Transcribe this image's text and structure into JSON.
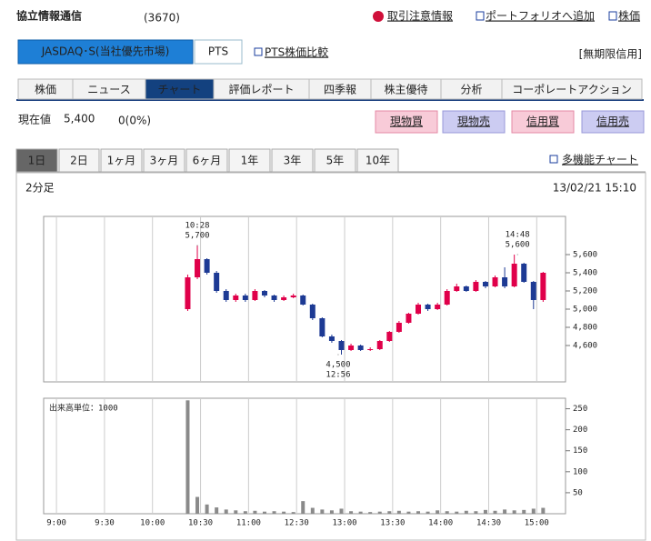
{
  "header": {
    "company": "協立情報通信",
    "code": "(3670)",
    "links": [
      "取引注意情報",
      "ポートフォリオへ追加",
      "株価"
    ]
  },
  "market": {
    "buttons": [
      "JASDAQ･S(当社優先市場)",
      "PTS"
    ],
    "compare_link": "PTS株価比較",
    "credit_note": "[無期限信用]"
  },
  "tabs": {
    "items": [
      "株価",
      "ニュース",
      "チャート",
      "評価レポート",
      "四季報",
      "株主優待",
      "分析",
      "コーポレートアクション"
    ],
    "active": 2
  },
  "quote": {
    "label": "現在値",
    "price": "5,400",
    "change": "0(0%)"
  },
  "trade_buttons": [
    "現物買",
    "現物売",
    "信用買",
    "信用売"
  ],
  "periods": {
    "items": [
      "1日",
      "2日",
      "1ヶ月",
      "3ヶ月",
      "6ヶ月",
      "1年",
      "3年",
      "5年",
      "10年"
    ],
    "active": 0,
    "link": "多機能チャート"
  },
  "chart_info": {
    "interval": "2分足",
    "timestamp": "13/02/21 15:10"
  },
  "chart_data": [
    {
      "type": "candlestick",
      "x": [
        82,
        88,
        94,
        100,
        106,
        112,
        118,
        124,
        130,
        136,
        142,
        148,
        154,
        160,
        166,
        172,
        178,
        184,
        190,
        196,
        202,
        208,
        214,
        220,
        226,
        232,
        238,
        244,
        250,
        256,
        262,
        268,
        274,
        280,
        286,
        292,
        298,
        304
      ],
      "open": [
        5000,
        5350,
        5550,
        5400,
        5200,
        5100,
        5150,
        5100,
        5200,
        5150,
        5100,
        5130,
        5150,
        5050,
        4900,
        4700,
        4650,
        4550,
        4600,
        4550,
        4560,
        4650,
        4750,
        4850,
        4950,
        5050,
        5000,
        5050,
        5200,
        5250,
        5200,
        5300,
        5250,
        5350,
        5250,
        5500,
        5300,
        5100
      ],
      "high": [
        5380,
        5700,
        5560,
        5420,
        5220,
        5170,
        5170,
        5220,
        5210,
        5160,
        5150,
        5170,
        5160,
        5060,
        4910,
        4720,
        4660,
        4620,
        4610,
        4580,
        4660,
        4760,
        4870,
        4960,
        5070,
        5060,
        5070,
        5220,
        5280,
        5260,
        5320,
        5310,
        5370,
        5460,
        5600,
        5510,
        5310,
        5410
      ],
      "low": [
        4980,
        5330,
        5380,
        5180,
        5080,
        5080,
        5080,
        5090,
        5130,
        5080,
        5090,
        5120,
        5040,
        4880,
        4690,
        4630,
        4500,
        4540,
        4540,
        4540,
        4550,
        4640,
        4740,
        4840,
        4940,
        4980,
        4990,
        5040,
        5190,
        5190,
        5190,
        5230,
        5240,
        5230,
        5240,
        5290,
        5000,
        5080
      ],
      "close": [
        5350,
        5550,
        5400,
        5200,
        5100,
        5150,
        5100,
        5200,
        5150,
        5100,
        5130,
        5150,
        5050,
        4900,
        4700,
        4650,
        4550,
        4600,
        4550,
        4560,
        4650,
        4750,
        4850,
        4950,
        5050,
        5000,
        5050,
        5200,
        5250,
        5200,
        5300,
        5250,
        5350,
        5250,
        5500,
        5300,
        5100,
        5400
      ],
      "up_color": "#e0004a",
      "down_color": "#1d3a94",
      "xlim": [
        -8,
        318
      ],
      "ylim": [
        4200,
        6020
      ],
      "yticks": [
        {
          "value": 4600,
          "label": "4,600"
        },
        {
          "value": 4800,
          "label": "4,800"
        },
        {
          "value": 5000,
          "label": "5,000"
        },
        {
          "value": 5200,
          "label": "5,200"
        },
        {
          "value": 5400,
          "label": "5,400"
        },
        {
          "value": 5600,
          "label": "5,600"
        }
      ],
      "grid": true,
      "annotations": [
        {
          "x": 88,
          "y": 5700,
          "lines": [
            "10:28",
            "5,700"
          ],
          "position": "above"
        },
        {
          "x": 176,
          "y": 4500,
          "lines": [
            "4,500",
            "12:56"
          ],
          "position": "below"
        },
        {
          "x": 288,
          "y": 5600,
          "lines": [
            "14:48",
            "5,600"
          ],
          "position": "above"
        }
      ]
    },
    {
      "type": "bar",
      "label": "出来高単位：1000",
      "x": [
        82,
        88,
        94,
        100,
        106,
        112,
        118,
        124,
        130,
        136,
        142,
        148,
        154,
        160,
        166,
        172,
        178,
        184,
        190,
        196,
        202,
        208,
        214,
        220,
        226,
        232,
        238,
        244,
        250,
        256,
        262,
        268,
        274,
        280,
        286,
        292,
        298,
        304
      ],
      "values": [
        270,
        40,
        22,
        15,
        10,
        8,
        6,
        7,
        5,
        6,
        5,
        4,
        30,
        14,
        10,
        8,
        12,
        6,
        5,
        4,
        5,
        6,
        7,
        5,
        6,
        5,
        8,
        6,
        5,
        7,
        6,
        9,
        7,
        10,
        8,
        9,
        12,
        14
      ],
      "color": "#8a8a8a",
      "xlim": [
        -8,
        318
      ],
      "ylim": [
        0,
        275
      ],
      "xticks": [
        {
          "value": 0,
          "label": "9:00"
        },
        {
          "value": 30,
          "label": "9:30"
        },
        {
          "value": 60,
          "label": "10:00"
        },
        {
          "value": 90,
          "label": "10:30"
        },
        {
          "value": 120,
          "label": "11:00"
        },
        {
          "value": 150,
          "label": "12:30"
        },
        {
          "value": 180,
          "label": "13:00"
        },
        {
          "value": 210,
          "label": "13:30"
        },
        {
          "value": 240,
          "label": "14:00"
        },
        {
          "value": 270,
          "label": "14:30"
        },
        {
          "value": 300,
          "label": "15:00"
        }
      ],
      "yticks": [
        50,
        100,
        150,
        200,
        250
      ],
      "grid": true
    }
  ]
}
